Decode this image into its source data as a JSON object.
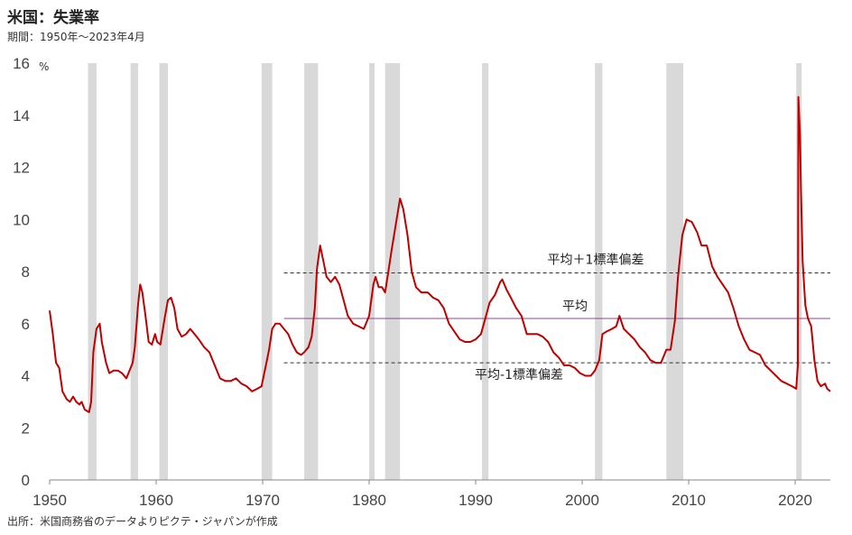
{
  "title": "米国：失業率",
  "subtitle": "期間：1950年～2023年4月",
  "source": "出所：米国商務省のデータよりピクテ・ジャパンが作成",
  "chart_data": {
    "type": "line",
    "ylabel": "%",
    "ylim": [
      0,
      16
    ],
    "xlim": [
      1950,
      2023.3
    ],
    "y_ticks": [
      "0",
      "2",
      "4",
      "6",
      "8",
      "10",
      "12",
      "14",
      "16"
    ],
    "x_ticks": [
      "1950",
      "1960",
      "1970",
      "1980",
      "1990",
      "2000",
      "2010",
      "2020"
    ],
    "grid": false,
    "series": [
      {
        "color": "#c00000",
        "points": [
          [
            1950.0,
            6.5
          ],
          [
            1950.3,
            5.6
          ],
          [
            1950.6,
            4.5
          ],
          [
            1950.9,
            4.3
          ],
          [
            1951.2,
            3.4
          ],
          [
            1951.6,
            3.1
          ],
          [
            1951.9,
            3.0
          ],
          [
            1952.2,
            3.2
          ],
          [
            1952.5,
            3.0
          ],
          [
            1952.8,
            2.9
          ],
          [
            1953.0,
            3.0
          ],
          [
            1953.3,
            2.7
          ],
          [
            1953.7,
            2.6
          ],
          [
            1953.9,
            3.0
          ],
          [
            1954.1,
            4.9
          ],
          [
            1954.4,
            5.8
          ],
          [
            1954.7,
            6.0
          ],
          [
            1954.9,
            5.3
          ],
          [
            1955.3,
            4.5
          ],
          [
            1955.6,
            4.1
          ],
          [
            1956.0,
            4.2
          ],
          [
            1956.4,
            4.2
          ],
          [
            1956.8,
            4.1
          ],
          [
            1957.2,
            3.9
          ],
          [
            1957.5,
            4.2
          ],
          [
            1957.8,
            4.5
          ],
          [
            1958.0,
            5.1
          ],
          [
            1958.3,
            6.7
          ],
          [
            1958.5,
            7.5
          ],
          [
            1958.7,
            7.2
          ],
          [
            1959.0,
            6.3
          ],
          [
            1959.3,
            5.3
          ],
          [
            1959.6,
            5.2
          ],
          [
            1959.9,
            5.6
          ],
          [
            1960.1,
            5.3
          ],
          [
            1960.4,
            5.2
          ],
          [
            1960.8,
            6.2
          ],
          [
            1961.1,
            6.9
          ],
          [
            1961.4,
            7.0
          ],
          [
            1961.7,
            6.6
          ],
          [
            1962.0,
            5.8
          ],
          [
            1962.4,
            5.5
          ],
          [
            1962.8,
            5.6
          ],
          [
            1963.2,
            5.8
          ],
          [
            1963.6,
            5.6
          ],
          [
            1964.0,
            5.4
          ],
          [
            1964.5,
            5.1
          ],
          [
            1965.0,
            4.9
          ],
          [
            1965.5,
            4.4
          ],
          [
            1966.0,
            3.9
          ],
          [
            1966.5,
            3.8
          ],
          [
            1967.0,
            3.8
          ],
          [
            1967.5,
            3.9
          ],
          [
            1968.0,
            3.7
          ],
          [
            1968.5,
            3.6
          ],
          [
            1969.0,
            3.4
          ],
          [
            1969.5,
            3.5
          ],
          [
            1969.9,
            3.6
          ],
          [
            1970.3,
            4.4
          ],
          [
            1970.6,
            5.0
          ],
          [
            1970.9,
            5.8
          ],
          [
            1971.2,
            6.0
          ],
          [
            1971.6,
            6.0
          ],
          [
            1972.0,
            5.8
          ],
          [
            1972.4,
            5.6
          ],
          [
            1972.8,
            5.2
          ],
          [
            1973.2,
            4.9
          ],
          [
            1973.6,
            4.8
          ],
          [
            1973.9,
            4.9
          ],
          [
            1974.3,
            5.1
          ],
          [
            1974.6,
            5.5
          ],
          [
            1974.9,
            6.6
          ],
          [
            1975.1,
            8.1
          ],
          [
            1975.4,
            9.0
          ],
          [
            1975.7,
            8.4
          ],
          [
            1976.0,
            7.8
          ],
          [
            1976.4,
            7.6
          ],
          [
            1976.8,
            7.8
          ],
          [
            1977.2,
            7.5
          ],
          [
            1977.6,
            6.9
          ],
          [
            1978.0,
            6.3
          ],
          [
            1978.5,
            6.0
          ],
          [
            1979.0,
            5.9
          ],
          [
            1979.5,
            5.8
          ],
          [
            1980.0,
            6.3
          ],
          [
            1980.4,
            7.5
          ],
          [
            1980.6,
            7.8
          ],
          [
            1980.9,
            7.4
          ],
          [
            1981.2,
            7.4
          ],
          [
            1981.5,
            7.2
          ],
          [
            1981.8,
            8.0
          ],
          [
            1982.1,
            8.8
          ],
          [
            1982.5,
            9.8
          ],
          [
            1982.9,
            10.8
          ],
          [
            1983.2,
            10.4
          ],
          [
            1983.6,
            9.4
          ],
          [
            1984.0,
            8.0
          ],
          [
            1984.4,
            7.4
          ],
          [
            1984.9,
            7.2
          ],
          [
            1985.5,
            7.2
          ],
          [
            1986.0,
            7.0
          ],
          [
            1986.5,
            6.9
          ],
          [
            1987.0,
            6.6
          ],
          [
            1987.5,
            6.0
          ],
          [
            1988.0,
            5.7
          ],
          [
            1988.5,
            5.4
          ],
          [
            1989.0,
            5.3
          ],
          [
            1989.5,
            5.3
          ],
          [
            1990.0,
            5.4
          ],
          [
            1990.5,
            5.6
          ],
          [
            1990.9,
            6.2
          ],
          [
            1991.3,
            6.8
          ],
          [
            1991.8,
            7.1
          ],
          [
            1992.3,
            7.6
          ],
          [
            1992.5,
            7.7
          ],
          [
            1992.9,
            7.3
          ],
          [
            1993.3,
            7.0
          ],
          [
            1993.8,
            6.6
          ],
          [
            1994.3,
            6.3
          ],
          [
            1994.8,
            5.6
          ],
          [
            1995.3,
            5.6
          ],
          [
            1995.8,
            5.6
          ],
          [
            1996.3,
            5.5
          ],
          [
            1996.8,
            5.3
          ],
          [
            1997.3,
            4.9
          ],
          [
            1997.8,
            4.7
          ],
          [
            1998.3,
            4.4
          ],
          [
            1998.8,
            4.4
          ],
          [
            1999.3,
            4.3
          ],
          [
            1999.8,
            4.1
          ],
          [
            2000.3,
            4.0
          ],
          [
            2000.8,
            4.0
          ],
          [
            2001.2,
            4.2
          ],
          [
            2001.6,
            4.6
          ],
          [
            2001.9,
            5.6
          ],
          [
            2002.3,
            5.7
          ],
          [
            2002.8,
            5.8
          ],
          [
            2003.2,
            5.9
          ],
          [
            2003.5,
            6.3
          ],
          [
            2003.9,
            5.8
          ],
          [
            2004.4,
            5.6
          ],
          [
            2004.9,
            5.4
          ],
          [
            2005.4,
            5.1
          ],
          [
            2005.9,
            4.9
          ],
          [
            2006.4,
            4.6
          ],
          [
            2006.9,
            4.5
          ],
          [
            2007.4,
            4.5
          ],
          [
            2007.9,
            5.0
          ],
          [
            2008.3,
            5.0
          ],
          [
            2008.7,
            6.1
          ],
          [
            2009.0,
            7.8
          ],
          [
            2009.4,
            9.4
          ],
          [
            2009.8,
            10.0
          ],
          [
            2010.3,
            9.9
          ],
          [
            2010.8,
            9.5
          ],
          [
            2011.2,
            9.0
          ],
          [
            2011.7,
            9.0
          ],
          [
            2012.2,
            8.2
          ],
          [
            2012.7,
            7.8
          ],
          [
            2013.2,
            7.5
          ],
          [
            2013.7,
            7.2
          ],
          [
            2014.2,
            6.6
          ],
          [
            2014.7,
            5.9
          ],
          [
            2015.2,
            5.4
          ],
          [
            2015.7,
            5.0
          ],
          [
            2016.2,
            4.9
          ],
          [
            2016.7,
            4.8
          ],
          [
            2017.2,
            4.4
          ],
          [
            2017.7,
            4.2
          ],
          [
            2018.2,
            4.0
          ],
          [
            2018.7,
            3.8
          ],
          [
            2019.2,
            3.7
          ],
          [
            2019.7,
            3.6
          ],
          [
            2020.1,
            3.5
          ],
          [
            2020.25,
            4.4
          ],
          [
            2020.3,
            14.7
          ],
          [
            2020.45,
            13.2
          ],
          [
            2020.55,
            11.1
          ],
          [
            2020.7,
            8.4
          ],
          [
            2020.95,
            6.7
          ],
          [
            2021.2,
            6.2
          ],
          [
            2021.5,
            5.9
          ],
          [
            2021.8,
            4.6
          ],
          [
            2022.1,
            3.8
          ],
          [
            2022.4,
            3.6
          ],
          [
            2022.8,
            3.7
          ],
          [
            2023.0,
            3.5
          ],
          [
            2023.3,
            3.4
          ]
        ]
      }
    ],
    "recessions": [
      [
        1953.6,
        1954.4
      ],
      [
        1957.6,
        1958.3
      ],
      [
        1960.3,
        1961.1
      ],
      [
        1969.9,
        1970.9
      ],
      [
        1973.9,
        1975.2
      ],
      [
        1980.0,
        1980.5
      ],
      [
        1981.5,
        1982.9
      ],
      [
        1990.6,
        1991.2
      ],
      [
        2001.2,
        2001.9
      ],
      [
        2007.9,
        2009.5
      ],
      [
        2020.1,
        2020.4
      ]
    ],
    "reference_lines": [
      {
        "label": "平均＋1標準偏差",
        "value": 7.95,
        "style": "dashed",
        "color": "#333333",
        "from": 1972
      },
      {
        "label": "平均",
        "value": 6.2,
        "style": "solid",
        "color": "#8b4a8b",
        "from": 1972
      },
      {
        "label": "平均‐1標準偏差",
        "value": 4.5,
        "style": "dashed",
        "color": "#333333",
        "from": 1972
      }
    ]
  }
}
